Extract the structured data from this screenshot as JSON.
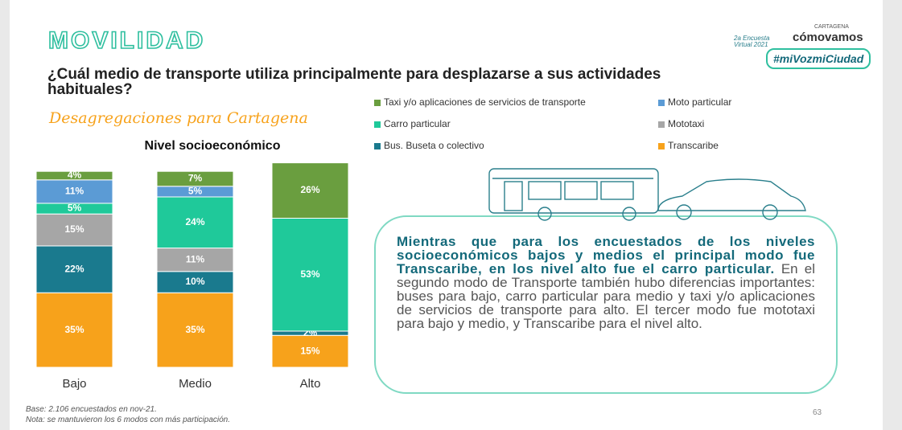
{
  "header": {
    "title": "MOVILIDAD",
    "question": "¿Cuál medio de transporte utiliza principalmente para desplazarse a sus actividades habituales?",
    "subtitle": "Desagregaciones para Cartagena"
  },
  "logo": {
    "city": "CARTAGENA",
    "brand": "cómovamos",
    "edition": "2a Encuesta Virtual 2021",
    "hashtag": "#miVozmiCiudad"
  },
  "chart_data": {
    "type": "stacked-bar",
    "title": "Nivel socioeconómico",
    "categories": [
      "Bajo",
      "Medio",
      "Alto"
    ],
    "series": [
      {
        "name": "Taxi y/o aplicaciones de servicios de transporte",
        "color": "#6a9e3f",
        "values": [
          4,
          7,
          26
        ],
        "value_labels": [
          "4%",
          "7%",
          "26%"
        ]
      },
      {
        "name": "Moto particular",
        "color": "#5b9bd5",
        "values": [
          11,
          5,
          null
        ],
        "value_labels": [
          "11%",
          "5%",
          null
        ]
      },
      {
        "name": "Carro particular",
        "color": "#1fc99a",
        "values": [
          5,
          24,
          53
        ],
        "value_labels": [
          "5%",
          "24%",
          "53%"
        ]
      },
      {
        "name": "Mototaxi",
        "color": "#a6a6a6",
        "values": [
          15,
          11,
          null
        ],
        "value_labels": [
          "15%",
          "11%",
          null
        ]
      },
      {
        "name": "Bus. Buseta o colectivo",
        "color": "#1a7a8e",
        "values": [
          22,
          10,
          2
        ],
        "value_labels": [
          "22%",
          "10%",
          "2%"
        ]
      },
      {
        "name": "Transcaribe",
        "color": "#f7a21b",
        "values": [
          35,
          35,
          15
        ],
        "value_labels": [
          "35%",
          "35%",
          "15%"
        ]
      }
    ]
  },
  "callout": {
    "bold": "Mientras que para los encuestados de los niveles socioeconómicos bajos y medios el principal modo fue Transcaribe, en los nivel alto fue el carro particular.",
    "text": " En el segundo modo de Transporte también hubo diferencias importantes: buses para bajo, carro particular para medio y taxi y/o aplicaciones de servicios de transporte para alto. El tercer modo fue mototaxi para bajo y medio, y Transcaribe para el nivel alto."
  },
  "notes": [
    "Base: 2.106 encuestados en nov-21.",
    "Nota: se mantuvieron los 6 modos con más participación."
  ],
  "page": "63"
}
